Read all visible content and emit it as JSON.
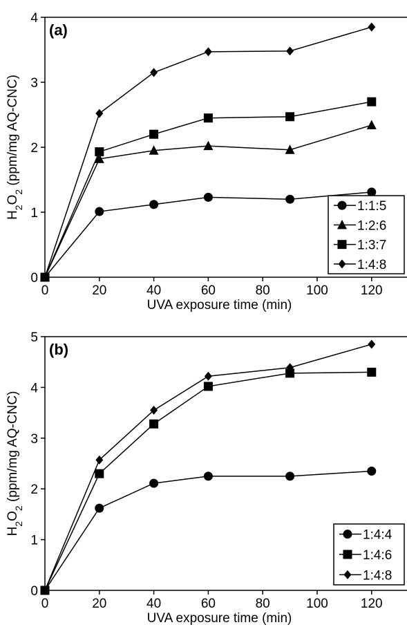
{
  "chart_data": [
    {
      "type": "line",
      "panel_label": "(a)",
      "xlabel": "UVA exposure time (min)",
      "ylabel": {
        "prefix": "H",
        "sub1": "2",
        "mid": "O",
        "sub2": "2",
        "suffix": " (ppm/mg AQ-CNC)"
      },
      "xlim": [
        0,
        133
      ],
      "ylim": [
        0,
        4
      ],
      "xticks": [
        0,
        20,
        40,
        60,
        80,
        100,
        120
      ],
      "yticks": [
        0,
        1,
        2,
        3,
        4
      ],
      "grid": false,
      "legend_position": "bottom-right",
      "x": [
        0,
        20,
        40,
        60,
        90,
        120
      ],
      "series": [
        {
          "name": "1:1:5",
          "marker": "circle",
          "values": [
            0,
            1.01,
            1.12,
            1.23,
            1.2,
            1.31
          ]
        },
        {
          "name": "1:2:6",
          "marker": "triangle",
          "values": [
            0,
            1.82,
            1.95,
            2.02,
            1.96,
            2.34
          ]
        },
        {
          "name": "1:3:7",
          "marker": "square",
          "values": [
            0,
            1.93,
            2.2,
            2.45,
            2.47,
            2.7
          ]
        },
        {
          "name": "1:4:8",
          "marker": "diamond",
          "values": [
            0,
            2.52,
            3.15,
            3.47,
            3.48,
            3.85
          ]
        }
      ]
    },
    {
      "type": "line",
      "panel_label": "(b)",
      "xlabel": "UVA exposure time (min)",
      "ylabel": {
        "prefix": "H",
        "sub1": "2",
        "mid": "O",
        "sub2": "2",
        "suffix": " (ppm/mg AQ-CNC)"
      },
      "xlim": [
        0,
        133
      ],
      "ylim": [
        0,
        5
      ],
      "xticks": [
        0,
        20,
        40,
        60,
        80,
        100,
        120
      ],
      "yticks": [
        0,
        1,
        2,
        3,
        4,
        5
      ],
      "grid": false,
      "legend_position": "bottom-right",
      "x": [
        0,
        20,
        40,
        60,
        90,
        120
      ],
      "series": [
        {
          "name": "1:4:4",
          "marker": "circle",
          "values": [
            0,
            1.62,
            2.11,
            2.25,
            2.25,
            2.35
          ]
        },
        {
          "name": "1:4:6",
          "marker": "square",
          "values": [
            0,
            2.3,
            3.28,
            4.02,
            4.28,
            4.3
          ]
        },
        {
          "name": "1:4:8",
          "marker": "diamond",
          "values": [
            0,
            2.57,
            3.55,
            4.22,
            4.39,
            4.85
          ]
        }
      ]
    }
  ]
}
